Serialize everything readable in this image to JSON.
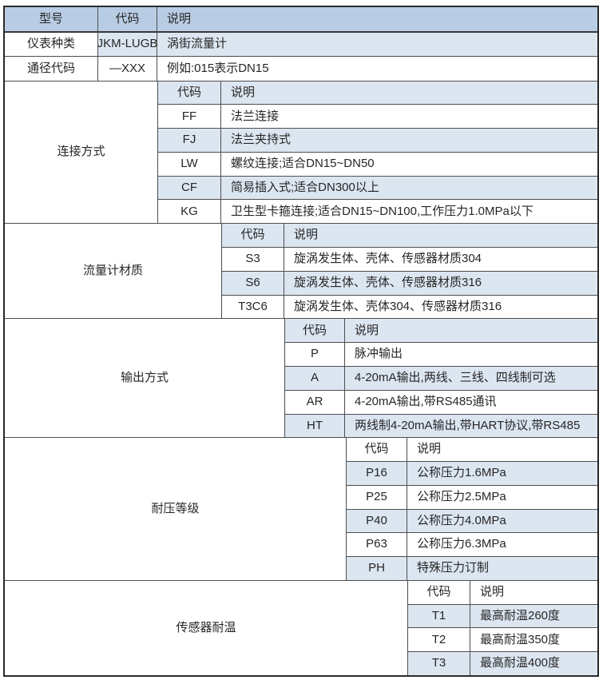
{
  "table": {
    "header": {
      "model": "型号",
      "code": "代码",
      "desc": "说明"
    },
    "top_rows": [
      {
        "label": "仪表种类",
        "code": "JKM-LUGB",
        "desc": "涡街流量计"
      },
      {
        "label": "通径代码",
        "code": "—XXX",
        "desc": "例如:015表示DN15"
      }
    ],
    "sections": [
      {
        "label": "连接方式",
        "code_header": "代码",
        "desc_header": "说明",
        "items": [
          {
            "code": "FF",
            "desc": "法兰连接"
          },
          {
            "code": "FJ",
            "desc": "法兰夹持式"
          },
          {
            "code": "LW",
            "desc": "螺纹连接;适合DN15~DN50"
          },
          {
            "code": "CF",
            "desc": "简易插入式;适合DN300以上"
          },
          {
            "code": "KG",
            "desc": "卫生型卡箍连接;适合DN15~DN100,工作压力1.0MPa以下"
          }
        ]
      },
      {
        "label": "流量计材质",
        "code_header": "代码",
        "desc_header": "说明",
        "items": [
          {
            "code": "S3",
            "desc": "旋涡发生体、壳体、传感器材质304"
          },
          {
            "code": "S6",
            "desc": "旋涡发生体、壳体、传感器材质316"
          },
          {
            "code": "T3C6",
            "desc": "旋涡发生体、壳体304、传感器材质316"
          }
        ]
      },
      {
        "label": "输出方式",
        "code_header": "代码",
        "desc_header": "说明",
        "items": [
          {
            "code": "P",
            "desc": "脉冲输出"
          },
          {
            "code": "A",
            "desc": "4-20mA输出,两线、三线、四线制可选"
          },
          {
            "code": "AR",
            "desc": "4-20mA输出,带RS485通讯"
          },
          {
            "code": "HT",
            "desc": "两线制4-20mA输出,带HART协议,带RS485"
          }
        ]
      },
      {
        "label": "耐压等级",
        "code_header": "代码",
        "desc_header": "说明",
        "items": [
          {
            "code": "P16",
            "desc": "公称压力1.6MPa"
          },
          {
            "code": "P25",
            "desc": "公称压力2.5MPa"
          },
          {
            "code": "P40",
            "desc": "公称压力4.0MPa"
          },
          {
            "code": "P63",
            "desc": "公称压力6.3MPa"
          },
          {
            "code": "PH",
            "desc": "特殊压力订制"
          }
        ]
      },
      {
        "label": "传感器耐温",
        "code_header": "代码",
        "desc_header": "说明",
        "items": [
          {
            "code": "T1",
            "desc": "最高耐温260度"
          },
          {
            "code": "T2",
            "desc": "最高耐温350度"
          },
          {
            "code": "T3",
            "desc": "最高耐温400度"
          }
        ]
      }
    ],
    "colors": {
      "header_bg": "#b8cce4",
      "band_bg": "#dce6f1",
      "row_bg": "#ffffff",
      "border": "#4e4e4e",
      "outer_border": "#2a2a2a",
      "text": "#262626"
    }
  }
}
